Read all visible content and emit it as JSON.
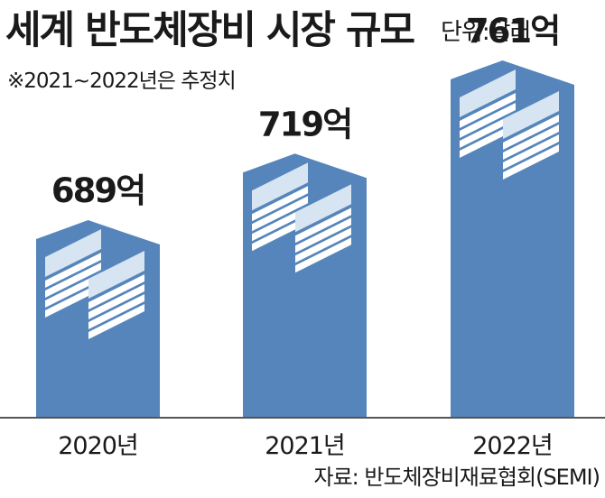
{
  "header": {
    "title": "세계 반도체장비 시장 규모",
    "unit": "단위:달러",
    "note": "※2021~2022년은 추정치"
  },
  "footer": {
    "source": "자료: 반도체장비재료협회(SEMI)"
  },
  "colors": {
    "bar": "#5585bb",
    "icon_top": "#d7e5f2",
    "icon_stripe": "#ffffff",
    "axis": "#555555"
  },
  "chart_data": {
    "type": "bar",
    "title": "세계 반도체장비 시장 규모",
    "categories": [
      "2020년",
      "2021년",
      "2022년"
    ],
    "values": [
      689,
      719,
      761
    ],
    "value_labels": [
      "689억",
      "719억",
      "761억"
    ],
    "unit": "억 달러",
    "estimated": [
      "2021년",
      "2022년"
    ]
  }
}
